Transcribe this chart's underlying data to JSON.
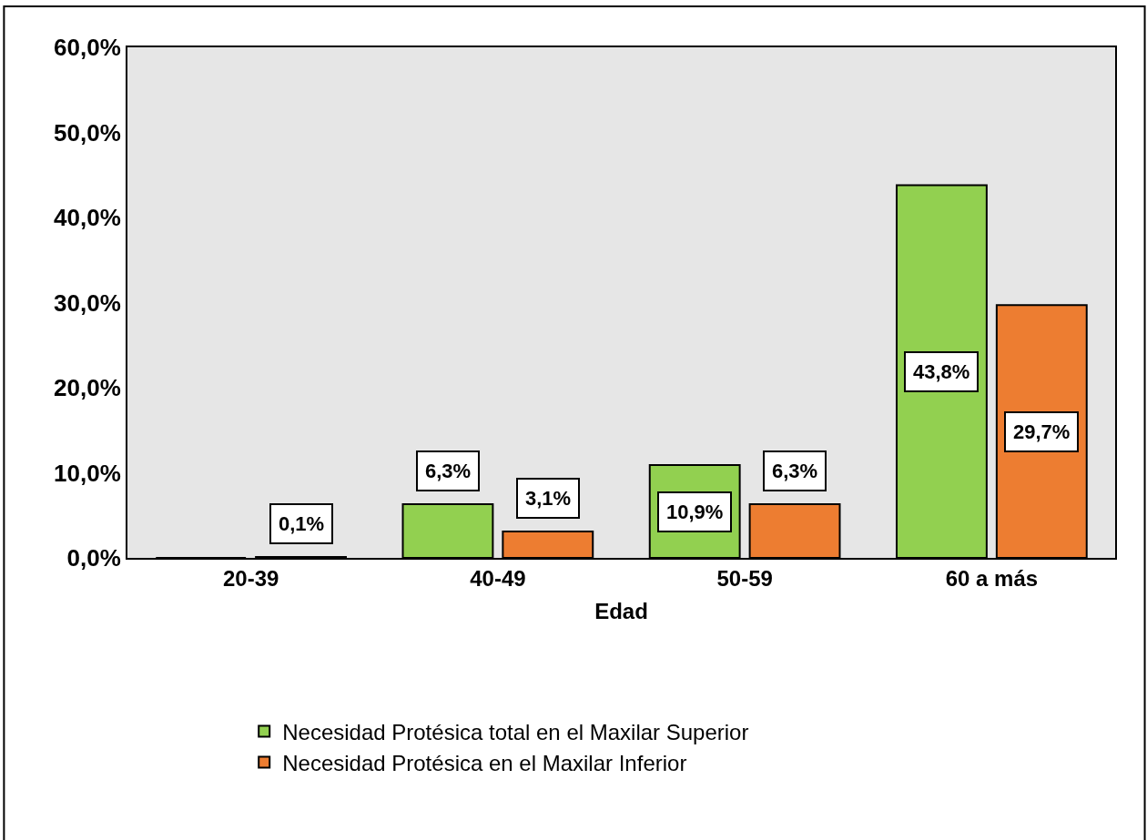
{
  "chart_data": {
    "type": "bar",
    "xlabel": "Edad",
    "categories": [
      "20-39",
      "40-49",
      "50-59",
      "60 a más"
    ],
    "series": [
      {
        "name": "Necesidad Protésica total en el Maxilar Superior",
        "color": "#92d050",
        "values": [
          0,
          6.3,
          10.9,
          43.8
        ],
        "value_labels": [
          null,
          "6,3%",
          "10,9%",
          "43,8%"
        ]
      },
      {
        "name": "Necesidad Protésica en el Maxilar Inferior",
        "color": "#ed7d31",
        "values": [
          0.1,
          3.1,
          6.3,
          29.7
        ],
        "value_labels": [
          "0,1%",
          "3,1%",
          "6,3%",
          "29,7%"
        ]
      }
    ],
    "ylim": [
      0,
      60
    ],
    "yticks": [
      {
        "value": 0,
        "label": "0,0%"
      },
      {
        "value": 10,
        "label": "10,0%"
      },
      {
        "value": 20,
        "label": "20,0%"
      },
      {
        "value": 30,
        "label": "30,0%"
      },
      {
        "value": 40,
        "label": "40,0%"
      },
      {
        "value": 50,
        "label": "50,0%"
      },
      {
        "value": 60,
        "label": "60,0%"
      }
    ],
    "grid": false,
    "legend": "bottom"
  }
}
